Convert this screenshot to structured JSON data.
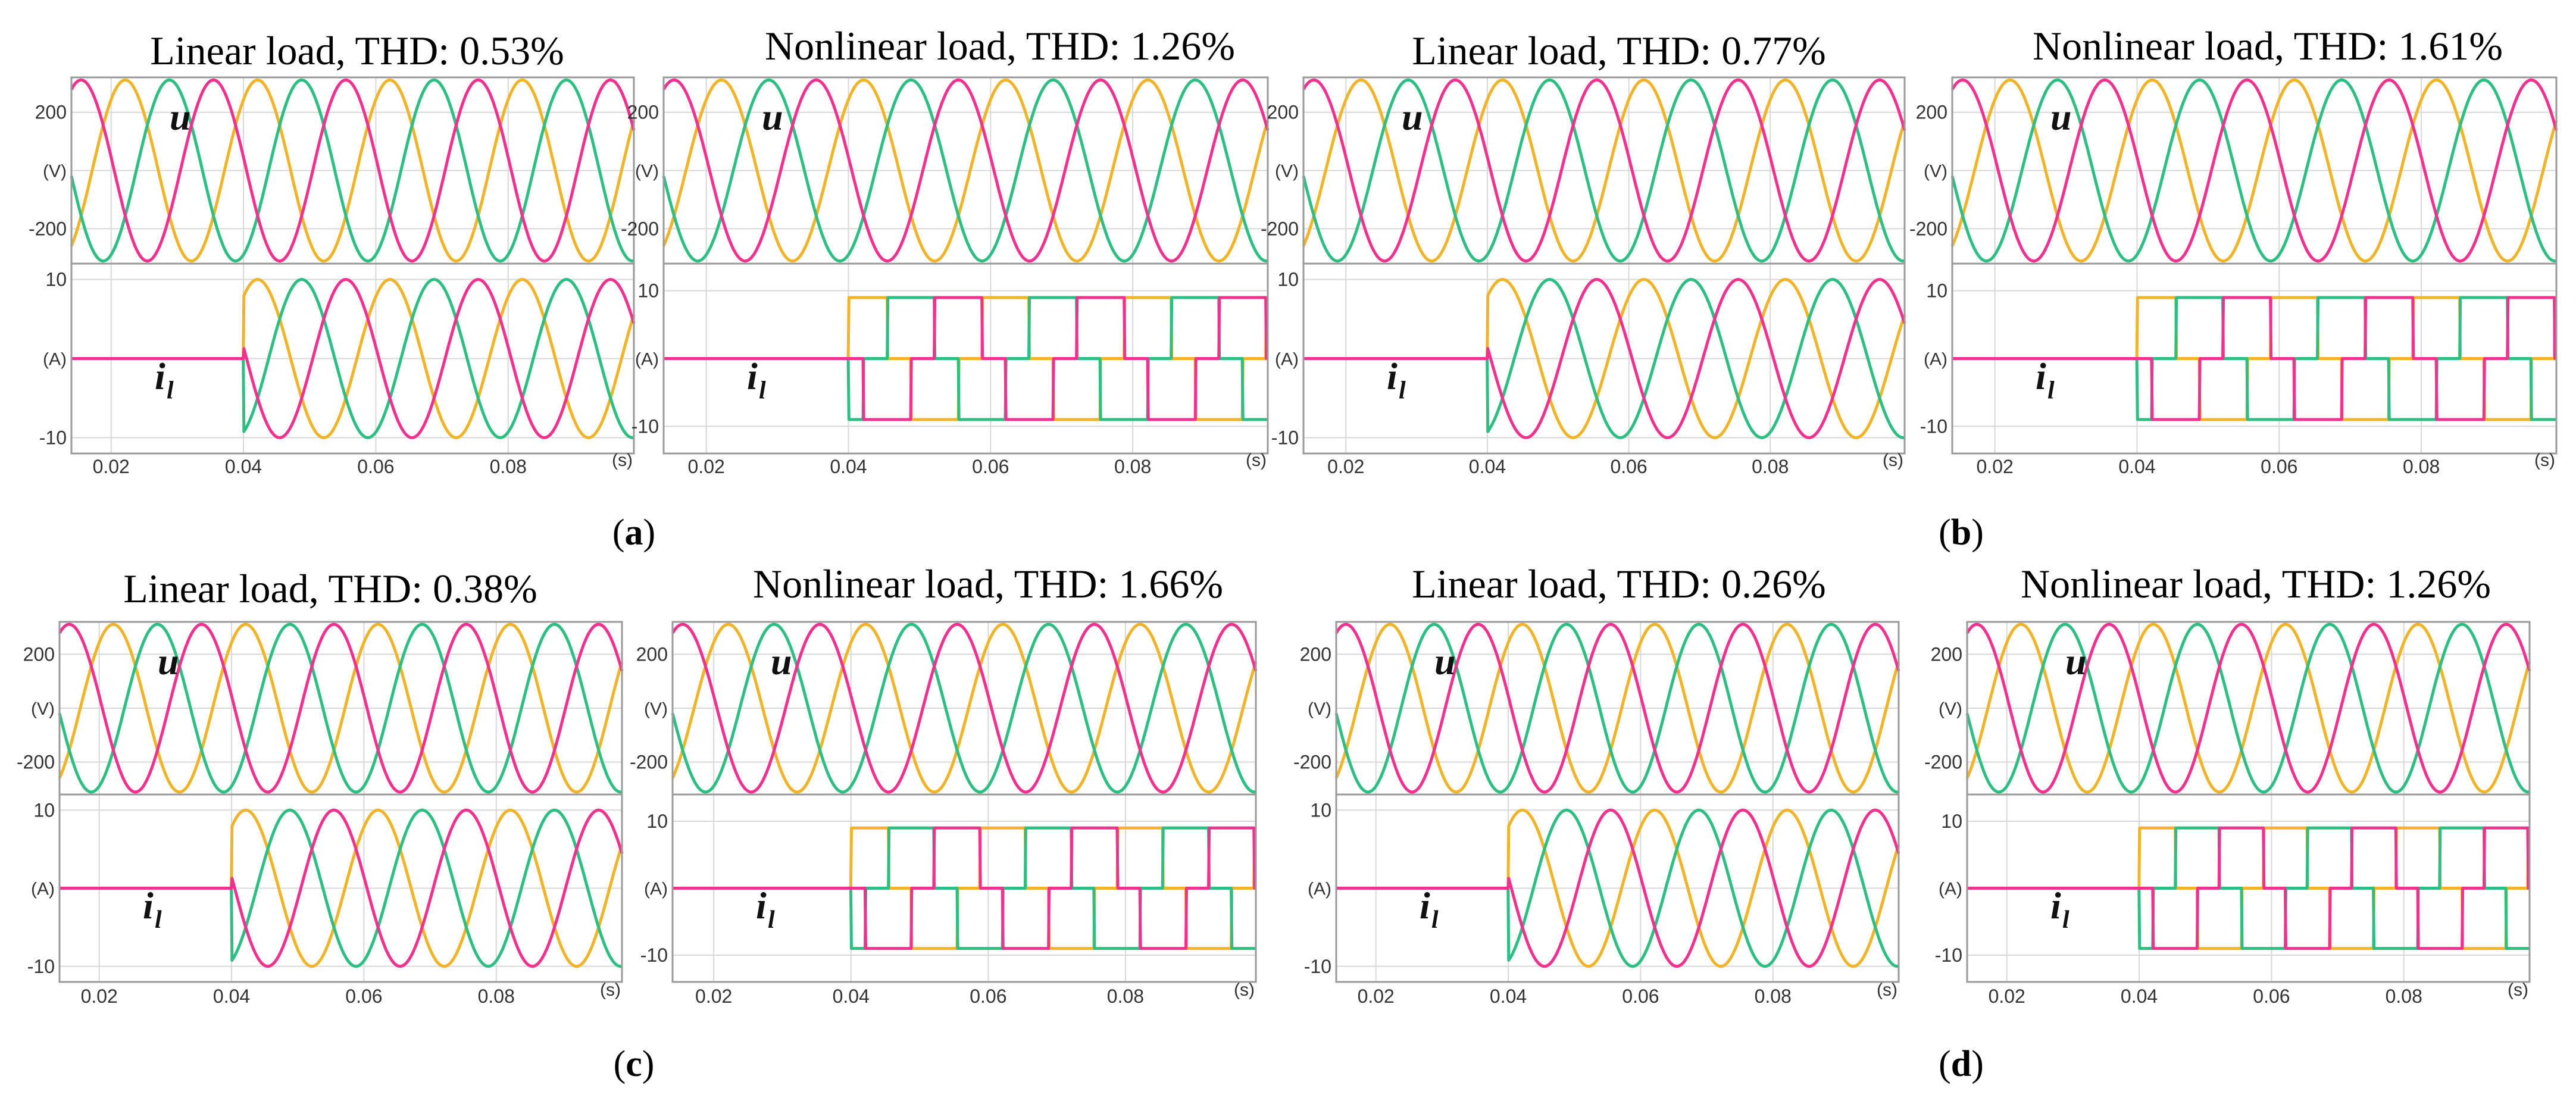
{
  "colors": {
    "phase_a": "#F0B429",
    "phase_b": "#2DBE84",
    "phase_c": "#F0318F",
    "grid": "#d8d8d8",
    "frame": "#9a9a9a"
  },
  "chart_data": [
    {
      "type": "line",
      "title": "Linear load, THD: 0.53%",
      "load": "linear",
      "thd_percent": 0.53,
      "group": "a",
      "voltage": {
        "symbol": "u",
        "unit_label": "(V)",
        "ticks": [
          "200",
          "-200"
        ],
        "ylim": [
          -320,
          320
        ],
        "amplitude": 311,
        "series": [
          "phase a",
          "phase b",
          "phase c"
        ]
      },
      "current": {
        "symbol": "i",
        "subscript": "l",
        "unit_label": "(A)",
        "ticks": [
          "10",
          "-10"
        ],
        "ylim": [
          -12,
          12
        ],
        "step_time": 0.04,
        "amplitude": 10,
        "series": [
          "phase a",
          "phase b",
          "phase c"
        ]
      },
      "x": {
        "unit_label": "(s)",
        "xlim": [
          0.014,
          0.099
        ],
        "ticks": [
          "0.02",
          "0.04",
          "0.06",
          "0.08"
        ]
      }
    },
    {
      "type": "line",
      "title": "Nonlinear load, THD: 1.26%",
      "load": "nonlinear",
      "thd_percent": 1.26,
      "group": "a",
      "voltage": {
        "symbol": "u",
        "unit_label": "(V)",
        "ticks": [
          "200",
          "-200"
        ],
        "ylim": [
          -320,
          320
        ],
        "amplitude": 311,
        "series": [
          "phase a",
          "phase b",
          "phase c"
        ]
      },
      "current": {
        "symbol": "i",
        "subscript": "l",
        "unit_label": "(A)",
        "ticks": [
          "10",
          "-10"
        ],
        "ylim": [
          -14,
          14
        ],
        "step_time": 0.04,
        "amplitude": 9,
        "series": [
          "phase a",
          "phase b",
          "phase c"
        ]
      },
      "x": {
        "unit_label": "(s)",
        "xlim": [
          0.014,
          0.099
        ],
        "ticks": [
          "0.02",
          "0.04",
          "0.06",
          "0.08"
        ]
      }
    },
    {
      "type": "line",
      "title": "Linear load, THD: 0.77%",
      "load": "linear",
      "thd_percent": 0.77,
      "group": "b",
      "voltage": {
        "symbol": "u",
        "unit_label": "(V)",
        "ticks": [
          "200",
          "-200"
        ],
        "ylim": [
          -320,
          320
        ],
        "amplitude": 311,
        "series": [
          "phase a",
          "phase b",
          "phase c"
        ]
      },
      "current": {
        "symbol": "i",
        "subscript": "l",
        "unit_label": "(A)",
        "ticks": [
          "10",
          "-10"
        ],
        "ylim": [
          -12,
          12
        ],
        "step_time": 0.04,
        "amplitude": 10,
        "series": [
          "phase a",
          "phase b",
          "phase c"
        ]
      },
      "x": {
        "unit_label": "(s)",
        "xlim": [
          0.014,
          0.099
        ],
        "ticks": [
          "0.02",
          "0.04",
          "0.06",
          "0.08"
        ]
      }
    },
    {
      "type": "line",
      "title": "Nonlinear load, THD: 1.61%",
      "load": "nonlinear",
      "thd_percent": 1.61,
      "group": "b",
      "voltage": {
        "symbol": "u",
        "unit_label": "(V)",
        "ticks": [
          "200",
          "-200"
        ],
        "ylim": [
          -320,
          320
        ],
        "amplitude": 311,
        "series": [
          "phase a",
          "phase b",
          "phase c"
        ]
      },
      "current": {
        "symbol": "i",
        "subscript": "l",
        "unit_label": "(A)",
        "ticks": [
          "10",
          "-10"
        ],
        "ylim": [
          -14,
          14
        ],
        "step_time": 0.04,
        "amplitude": 9,
        "series": [
          "phase a",
          "phase b",
          "phase c"
        ]
      },
      "x": {
        "unit_label": "(s)",
        "xlim": [
          0.014,
          0.099
        ],
        "ticks": [
          "0.02",
          "0.04",
          "0.06",
          "0.08"
        ]
      }
    },
    {
      "type": "line",
      "title": "Linear load, THD: 0.38%",
      "load": "linear",
      "thd_percent": 0.38,
      "group": "c",
      "voltage": {
        "symbol": "u",
        "unit_label": "(V)",
        "ticks": [
          "200",
          "-200"
        ],
        "ylim": [
          -320,
          320
        ],
        "amplitude": 311,
        "series": [
          "phase a",
          "phase b",
          "phase c"
        ]
      },
      "current": {
        "symbol": "i",
        "subscript": "l",
        "unit_label": "(A)",
        "ticks": [
          "10",
          "-10"
        ],
        "ylim": [
          -12,
          12
        ],
        "step_time": 0.04,
        "amplitude": 10,
        "series": [
          "phase a",
          "phase b",
          "phase c"
        ]
      },
      "x": {
        "unit_label": "(s)",
        "xlim": [
          0.014,
          0.099
        ],
        "ticks": [
          "0.02",
          "0.04",
          "0.06",
          "0.08"
        ]
      }
    },
    {
      "type": "line",
      "title": "Nonlinear load, THD: 1.66%",
      "load": "nonlinear",
      "thd_percent": 1.66,
      "group": "c",
      "voltage": {
        "symbol": "u",
        "unit_label": "(V)",
        "ticks": [
          "200",
          "-200"
        ],
        "ylim": [
          -320,
          320
        ],
        "amplitude": 311,
        "series": [
          "phase a",
          "phase b",
          "phase c"
        ]
      },
      "current": {
        "symbol": "i",
        "subscript": "l",
        "unit_label": "(A)",
        "ticks": [
          "10",
          "-10"
        ],
        "ylim": [
          -14,
          14
        ],
        "step_time": 0.04,
        "amplitude": 9,
        "series": [
          "phase a",
          "phase b",
          "phase c"
        ]
      },
      "x": {
        "unit_label": "(s)",
        "xlim": [
          0.014,
          0.099
        ],
        "ticks": [
          "0.02",
          "0.04",
          "0.06",
          "0.08"
        ]
      }
    },
    {
      "type": "line",
      "title": "Linear load, THD: 0.26%",
      "load": "linear",
      "thd_percent": 0.26,
      "group": "d",
      "voltage": {
        "symbol": "u",
        "unit_label": "(V)",
        "ticks": [
          "200",
          "-200"
        ],
        "ylim": [
          -320,
          320
        ],
        "amplitude": 311,
        "series": [
          "phase a",
          "phase b",
          "phase c"
        ]
      },
      "current": {
        "symbol": "i",
        "subscript": "l",
        "unit_label": "(A)",
        "ticks": [
          "10",
          "-10"
        ],
        "ylim": [
          -12,
          12
        ],
        "step_time": 0.04,
        "amplitude": 10,
        "series": [
          "phase a",
          "phase b",
          "phase c"
        ]
      },
      "x": {
        "unit_label": "(s)",
        "xlim": [
          0.014,
          0.099
        ],
        "ticks": [
          "0.02",
          "0.04",
          "0.06",
          "0.08"
        ]
      }
    },
    {
      "type": "line",
      "title": "Nonlinear load, THD: 1.26%",
      "load": "nonlinear",
      "thd_percent": 1.26,
      "group": "d",
      "voltage": {
        "symbol": "u",
        "unit_label": "(V)",
        "ticks": [
          "200",
          "-200"
        ],
        "ylim": [
          -320,
          320
        ],
        "amplitude": 311,
        "series": [
          "phase a",
          "phase b",
          "phase c"
        ]
      },
      "current": {
        "symbol": "i",
        "subscript": "l",
        "unit_label": "(A)",
        "ticks": [
          "10",
          "-10"
        ],
        "ylim": [
          -14,
          14
        ],
        "step_time": 0.04,
        "amplitude": 9,
        "series": [
          "phase a",
          "phase b",
          "phase c"
        ]
      },
      "x": {
        "unit_label": "(s)",
        "xlim": [
          0.014,
          0.099
        ],
        "ticks": [
          "0.02",
          "0.04",
          "0.06",
          "0.08"
        ]
      }
    }
  ],
  "captions": [
    {
      "open": "(",
      "letter": "a",
      "close": ")"
    },
    {
      "open": "(",
      "letter": "b",
      "close": ")"
    },
    {
      "open": "(",
      "letter": "c",
      "close": ")"
    },
    {
      "open": "(",
      "letter": "d",
      "close": ")"
    }
  ],
  "signal": {
    "frequency_hz": 50
  }
}
